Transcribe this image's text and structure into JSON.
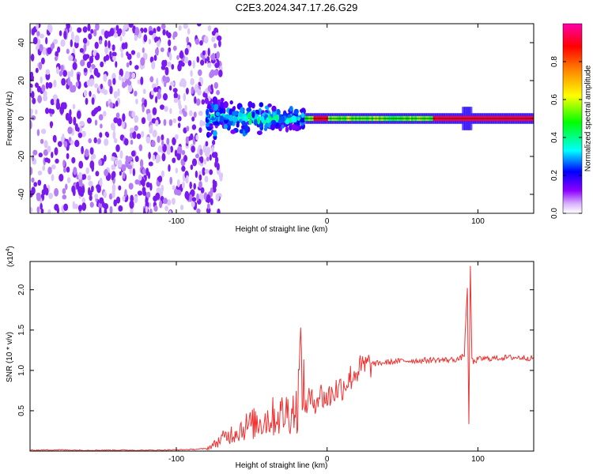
{
  "title": "C2E3.2024.347.17.26.G29",
  "chart_data": [
    {
      "type": "heatmap",
      "xlabel": "Height of straight line (km)",
      "ylabel": "Frequency (Hz)",
      "xlim": [
        -197,
        137
      ],
      "ylim": [
        -50,
        50
      ],
      "xticks": [
        -100,
        0,
        100
      ],
      "yticks": [
        -40,
        -20,
        0,
        20,
        40
      ],
      "colorbar": {
        "label": "Normalized spectral amplitude",
        "range": [
          0,
          1
        ],
        "ticks": [
          "0.0",
          "0.2",
          "0.4",
          "0.6",
          "0.8"
        ],
        "colormap": [
          "#ffffff",
          "#8c00ff",
          "#0000ff",
          "#00ffff",
          "#00ff00",
          "#ffff00",
          "#ff8000",
          "#ff0000",
          "#ff00aa"
        ]
      },
      "regions": [
        {
          "x_range": [
            -197,
            -80
          ],
          "freq_range": [
            -50,
            50
          ],
          "description_amplitude": [
            0.05,
            0.15
          ]
        },
        {
          "x_range": [
            -80,
            -15
          ],
          "freq_range": [
            -12,
            12
          ],
          "description_amplitude": [
            0.1,
            0.45
          ]
        },
        {
          "x_range": [
            -15,
            137
          ],
          "freq_range": [
            -3,
            3
          ],
          "description_amplitude": [
            0.3,
            1.0
          ]
        }
      ]
    },
    {
      "type": "line",
      "xlabel": "Height of straight line (km)",
      "ylabel": "SNR (10 * v/v)",
      "y_multiplier_label": "(x10",
      "y_multiplier_exp": "4",
      "xlim": [
        -197,
        137
      ],
      "ylim": [
        0,
        23500
      ],
      "xticks": [
        -100,
        0,
        100
      ],
      "yticks": [
        5000,
        10000,
        15000,
        20000
      ],
      "ytick_labels": [
        "0.5",
        "1.0",
        "1.5",
        "2.0"
      ],
      "color": "#ee3333",
      "series": [
        {
          "x": [
            -197,
            -180,
            -160,
            -140,
            -120,
            -100,
            -90,
            -80,
            -75,
            -70,
            -65,
            -60,
            -55,
            -50,
            -45,
            -40,
            -35,
            -30,
            -25,
            -20,
            -17,
            -15,
            -12,
            -10,
            -5,
            0,
            5,
            10,
            15,
            20,
            25,
            30,
            40,
            50,
            60,
            70,
            80,
            88,
            91,
            93,
            94,
            95,
            96,
            97,
            100,
            110,
            120,
            130,
            137
          ],
          "y": [
            100,
            150,
            100,
            120,
            100,
            150,
            200,
            300,
            800,
            1500,
            2000,
            2500,
            3000,
            3300,
            3600,
            4000,
            4300,
            4500,
            5000,
            5200,
            12000,
            5500,
            6500,
            6000,
            7000,
            6500,
            7500,
            8000,
            9000,
            10000,
            10500,
            10800,
            11000,
            11200,
            11200,
            11300,
            11300,
            11400,
            12000,
            20500,
            3000,
            23000,
            11500,
            11000,
            11400,
            11500,
            11600,
            11600,
            11500
          ]
        }
      ]
    }
  ]
}
